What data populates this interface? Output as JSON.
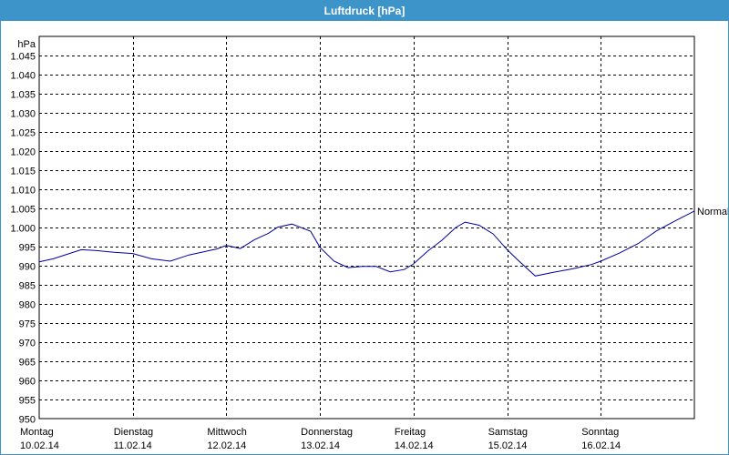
{
  "window": {
    "title": "Luftdruck [hPa]"
  },
  "chart_data": {
    "type": "line",
    "title": "Luftdruck [hPa]",
    "ylabel": "hPa",
    "ylim": [
      950,
      1050
    ],
    "yticks": [
      "1.045",
      "1.040",
      "1.035",
      "1.030",
      "1.025",
      "1.020",
      "1.015",
      "1.010",
      "1.005",
      "1.000",
      "995",
      "990",
      "985",
      "980",
      "975",
      "970",
      "965",
      "960",
      "955",
      "950"
    ],
    "ytick_values": [
      1045,
      1040,
      1035,
      1030,
      1025,
      1020,
      1015,
      1010,
      1005,
      1000,
      995,
      990,
      985,
      980,
      975,
      970,
      965,
      960,
      955,
      950
    ],
    "xlim": [
      0,
      7
    ],
    "days": [
      {
        "day": "Montag",
        "date": "10.02.14"
      },
      {
        "day": "Dienstag",
        "date": "11.02.14"
      },
      {
        "day": "Mittwoch",
        "date": "12.02.14"
      },
      {
        "day": "Donnerstag",
        "date": "13.02.14"
      },
      {
        "day": "Freitag",
        "date": "14.02.14"
      },
      {
        "day": "Samstag",
        "date": "15.02.14"
      },
      {
        "day": "Sonntag",
        "date": "16.02.14"
      }
    ],
    "series": [
      {
        "name": "Normal",
        "color": "#0000a0",
        "x": [
          0,
          0.15,
          0.3,
          0.45,
          0.6,
          0.8,
          1.0,
          1.2,
          1.4,
          1.6,
          1.75,
          1.9,
          2.0,
          2.15,
          2.3,
          2.45,
          2.55,
          2.7,
          2.9,
          3.0,
          3.15,
          3.3,
          3.45,
          3.6,
          3.75,
          3.9,
          4.0,
          4.15,
          4.3,
          4.45,
          4.55,
          4.7,
          4.85,
          5.0,
          5.1,
          5.3,
          5.5,
          5.7,
          5.9,
          6.0,
          6.2,
          6.4,
          6.6,
          6.8,
          7.0
        ],
        "y": [
          991.0,
          991.8,
          993.0,
          994.2,
          994.0,
          993.5,
          993.2,
          991.8,
          991.2,
          992.8,
          993.6,
          994.4,
          995.3,
          994.5,
          996.8,
          998.5,
          1000.1,
          1000.9,
          999.0,
          994.8,
          991.2,
          989.5,
          989.8,
          989.8,
          988.4,
          989.0,
          990.5,
          993.8,
          996.6,
          1000.0,
          1001.4,
          1000.6,
          998.3,
          994.2,
          991.8,
          987.3,
          988.3,
          989.2,
          990.3,
          991.2,
          993.3,
          995.8,
          999.2,
          1001.8,
          1004.3
        ]
      }
    ]
  }
}
